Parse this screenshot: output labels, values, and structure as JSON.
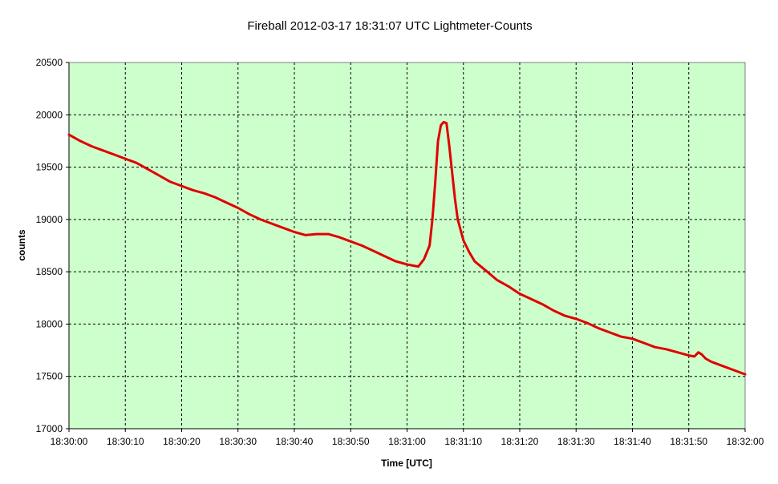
{
  "chart_data": {
    "type": "line",
    "title": "Fireball 2012-03-17  18:31:07 UTC  Lightmeter-Counts",
    "xlabel": "Time [UTC]",
    "ylabel": "counts",
    "x_tick_labels": [
      "18:30:00",
      "18:30:10",
      "18:30:20",
      "18:30:30",
      "18:30:40",
      "18:30:50",
      "18:31:00",
      "18:31:10",
      "18:31:20",
      "18:31:30",
      "18:31:40",
      "18:31:50",
      "18:32:00"
    ],
    "y_tick_labels": [
      "17000",
      "17500",
      "18000",
      "18500",
      "19000",
      "19500",
      "20000",
      "20500"
    ],
    "ylim": [
      17000,
      20500
    ],
    "xlim_seconds_of_window": [
      0,
      120
    ],
    "grid": true,
    "legend": "none",
    "colors": {
      "plot_background": "#ccffcc",
      "line": "#e00000",
      "grid": "#000000"
    },
    "series": [
      {
        "x": [
          0,
          2,
          4,
          6,
          8,
          10,
          12,
          14,
          16,
          18,
          20,
          22,
          24,
          26,
          28,
          30,
          32,
          34,
          36,
          38,
          40,
          42,
          44,
          46,
          48,
          50,
          52,
          54,
          56,
          58,
          60,
          62,
          63,
          64,
          64.5,
          65,
          65.5,
          66,
          66.5,
          67,
          67.5,
          68,
          68.5,
          69,
          70,
          71,
          72,
          74,
          76,
          78,
          80,
          82,
          84,
          86,
          88,
          90,
          92,
          94,
          96,
          98,
          100,
          102,
          104,
          106,
          108,
          110,
          111,
          111.7,
          112.3,
          113,
          114,
          116,
          118,
          120
        ],
        "values": [
          19810,
          19750,
          19700,
          19660,
          19620,
          19580,
          19540,
          19480,
          19420,
          19360,
          19320,
          19280,
          19250,
          19210,
          19160,
          19110,
          19050,
          19000,
          18960,
          18920,
          18880,
          18850,
          18860,
          18860,
          18830,
          18790,
          18750,
          18700,
          18650,
          18600,
          18570,
          18550,
          18620,
          18750,
          19000,
          19350,
          19750,
          19900,
          19930,
          19920,
          19700,
          19450,
          19200,
          19000,
          18800,
          18690,
          18600,
          18510,
          18420,
          18360,
          18290,
          18240,
          18190,
          18130,
          18080,
          18050,
          18010,
          17960,
          17920,
          17880,
          17860,
          17820,
          17780,
          17760,
          17730,
          17700,
          17690,
          17730,
          17710,
          17670,
          17640,
          17600,
          17560,
          17520
        ]
      }
    ]
  }
}
